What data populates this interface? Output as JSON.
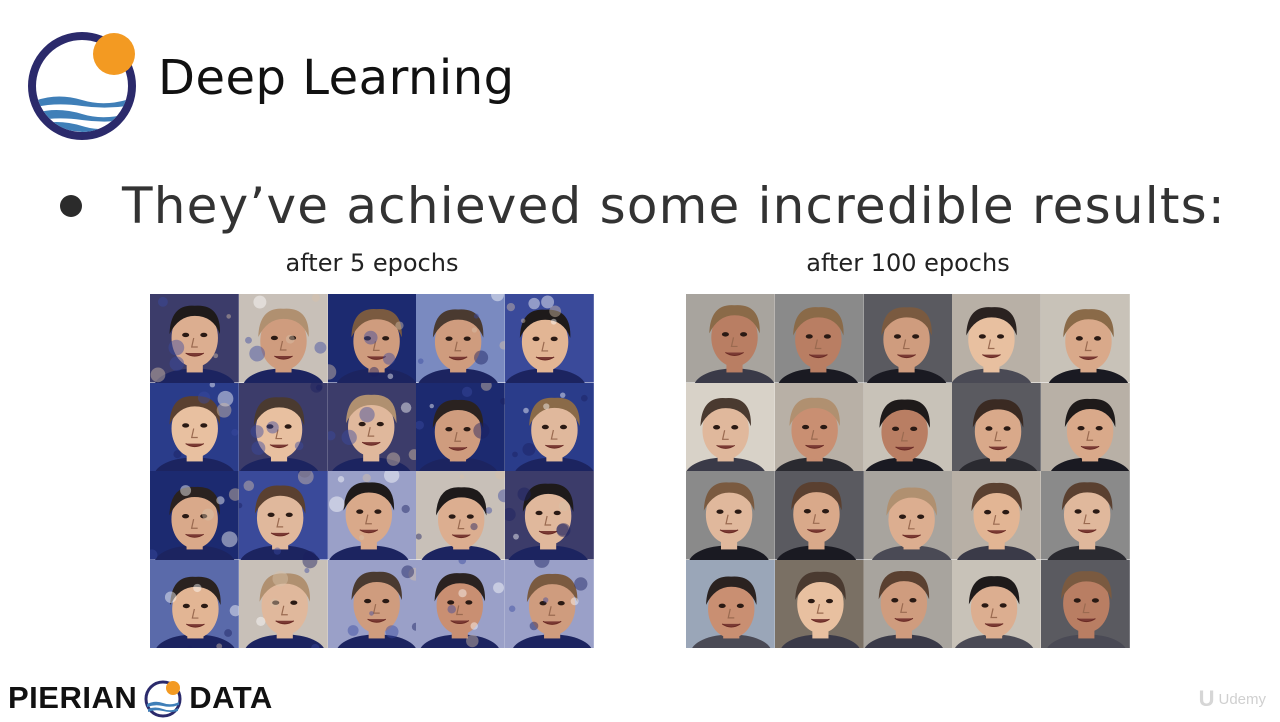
{
  "slide": {
    "title": "Deep Learning",
    "bullet": "They’ve achieved some incredible results:"
  },
  "figures": [
    {
      "caption": "after 5 epochs",
      "rows": 4,
      "cols": 5
    },
    {
      "caption": "after 100 epochs",
      "rows": 4,
      "cols": 5
    }
  ],
  "footer": {
    "brand_left": "PIERIAN",
    "brand_right": "DATA"
  },
  "watermark": {
    "text": "Udemy"
  },
  "colors": {
    "brand_navy": "#2b2a6b",
    "brand_orange": "#f39a22",
    "brand_blue": "#3f7fb8",
    "text_dark": "#333333"
  },
  "icons": {
    "logo": "pierian-data-logo-icon",
    "bullet": "bullet-dot-icon"
  }
}
